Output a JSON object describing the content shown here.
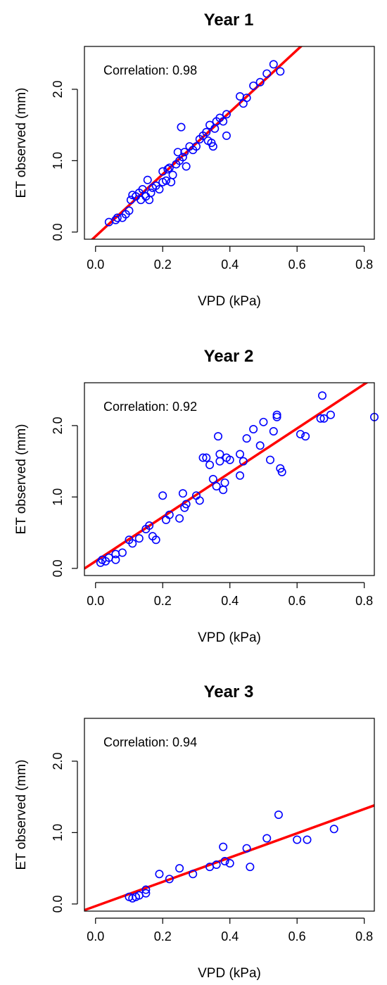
{
  "chart_data": [
    {
      "type": "scatter",
      "title": "Year 1",
      "xlabel": "VPD (kPa)",
      "ylabel": "ET observed (mm)",
      "annotation": "Correlation: 0.98",
      "xlim": [
        -0.033,
        0.83
      ],
      "ylim": [
        -0.1,
        2.6
      ],
      "xticks": [
        "0.0",
        "0.2",
        "0.4",
        "0.6",
        "0.8"
      ],
      "yticks": [
        "0.0",
        "1.0",
        "2.0"
      ],
      "point_color": "#0000ff",
      "line_color": "#ff0000",
      "fit_line": {
        "intercept": -0.06,
        "slope": 4.35
      },
      "points": [
        [
          0.04,
          0.14
        ],
        [
          0.06,
          0.17
        ],
        [
          0.065,
          0.2
        ],
        [
          0.08,
          0.2
        ],
        [
          0.09,
          0.25
        ],
        [
          0.1,
          0.3
        ],
        [
          0.105,
          0.45
        ],
        [
          0.11,
          0.52
        ],
        [
          0.12,
          0.5
        ],
        [
          0.13,
          0.55
        ],
        [
          0.135,
          0.45
        ],
        [
          0.14,
          0.6
        ],
        [
          0.15,
          0.5
        ],
        [
          0.155,
          0.73
        ],
        [
          0.16,
          0.45
        ],
        [
          0.165,
          0.55
        ],
        [
          0.17,
          0.62
        ],
        [
          0.18,
          0.65
        ],
        [
          0.19,
          0.6
        ],
        [
          0.2,
          0.7
        ],
        [
          0.2,
          0.85
        ],
        [
          0.21,
          0.72
        ],
        [
          0.215,
          0.88
        ],
        [
          0.22,
          0.9
        ],
        [
          0.225,
          0.7
        ],
        [
          0.23,
          0.8
        ],
        [
          0.24,
          0.95
        ],
        [
          0.245,
          1.12
        ],
        [
          0.25,
          1.0
        ],
        [
          0.255,
          1.47
        ],
        [
          0.26,
          1.05
        ],
        [
          0.265,
          1.12
        ],
        [
          0.27,
          0.92
        ],
        [
          0.28,
          1.2
        ],
        [
          0.29,
          1.15
        ],
        [
          0.3,
          1.2
        ],
        [
          0.31,
          1.3
        ],
        [
          0.32,
          1.35
        ],
        [
          0.33,
          1.4
        ],
        [
          0.335,
          1.28
        ],
        [
          0.34,
          1.5
        ],
        [
          0.345,
          1.25
        ],
        [
          0.35,
          1.2
        ],
        [
          0.355,
          1.45
        ],
        [
          0.36,
          1.55
        ],
        [
          0.37,
          1.6
        ],
        [
          0.38,
          1.55
        ],
        [
          0.39,
          1.35
        ],
        [
          0.39,
          1.65
        ],
        [
          0.43,
          1.9
        ],
        [
          0.44,
          1.8
        ],
        [
          0.45,
          1.88
        ],
        [
          0.47,
          2.05
        ],
        [
          0.49,
          2.1
        ],
        [
          0.51,
          2.22
        ],
        [
          0.53,
          2.35
        ],
        [
          0.55,
          2.25
        ]
      ]
    },
    {
      "type": "scatter",
      "title": "Year 2",
      "xlabel": "VPD (kPa)",
      "ylabel": "ET observed (mm)",
      "annotation": "Correlation: 0.92",
      "xlim": [
        -0.033,
        0.83
      ],
      "ylim": [
        -0.1,
        2.6
      ],
      "xticks": [
        "0.0",
        "0.2",
        "0.4",
        "0.6",
        "0.8"
      ],
      "yticks": [
        "0.0",
        "1.0",
        "2.0"
      ],
      "point_color": "#0000ff",
      "line_color": "#ff0000",
      "fit_line": {
        "intercept": 0.1,
        "slope": 3.1
      },
      "points": [
        [
          0.015,
          0.08
        ],
        [
          0.02,
          0.12
        ],
        [
          0.03,
          0.1
        ],
        [
          0.04,
          0.15
        ],
        [
          0.06,
          0.2
        ],
        [
          0.06,
          0.12
        ],
        [
          0.08,
          0.22
        ],
        [
          0.1,
          0.4
        ],
        [
          0.11,
          0.35
        ],
        [
          0.13,
          0.42
        ],
        [
          0.15,
          0.55
        ],
        [
          0.16,
          0.6
        ],
        [
          0.17,
          0.45
        ],
        [
          0.18,
          0.4
        ],
        [
          0.2,
          1.02
        ],
        [
          0.21,
          0.68
        ],
        [
          0.22,
          0.75
        ],
        [
          0.25,
          0.7
        ],
        [
          0.26,
          1.05
        ],
        [
          0.265,
          0.85
        ],
        [
          0.27,
          0.9
        ],
        [
          0.3,
          1.02
        ],
        [
          0.31,
          0.95
        ],
        [
          0.32,
          1.55
        ],
        [
          0.33,
          1.55
        ],
        [
          0.34,
          1.45
        ],
        [
          0.35,
          1.25
        ],
        [
          0.36,
          1.15
        ],
        [
          0.365,
          1.85
        ],
        [
          0.37,
          1.5
        ],
        [
          0.37,
          1.6
        ],
        [
          0.38,
          1.1
        ],
        [
          0.385,
          1.2
        ],
        [
          0.39,
          1.55
        ],
        [
          0.4,
          1.52
        ],
        [
          0.43,
          1.3
        ],
        [
          0.43,
          1.6
        ],
        [
          0.44,
          1.5
        ],
        [
          0.45,
          1.82
        ],
        [
          0.47,
          1.95
        ],
        [
          0.49,
          1.72
        ],
        [
          0.5,
          2.05
        ],
        [
          0.52,
          1.52
        ],
        [
          0.53,
          1.92
        ],
        [
          0.54,
          2.12
        ],
        [
          0.54,
          2.15
        ],
        [
          0.55,
          1.4
        ],
        [
          0.555,
          1.35
        ],
        [
          0.61,
          1.88
        ],
        [
          0.625,
          1.85
        ],
        [
          0.67,
          2.1
        ],
        [
          0.675,
          2.42
        ],
        [
          0.68,
          2.1
        ],
        [
          0.7,
          2.15
        ],
        [
          0.83,
          2.12
        ]
      ]
    },
    {
      "type": "scatter",
      "title": "Year 3",
      "xlabel": "VPD (kPa)",
      "ylabel": "ET observed (mm)",
      "annotation": "Correlation: 0.94",
      "xlim": [
        -0.033,
        0.83
      ],
      "ylim": [
        -0.1,
        2.6
      ],
      "xticks": [
        "0.0",
        "0.2",
        "0.4",
        "0.6",
        "0.8"
      ],
      "yticks": [
        "0.0",
        "1.0",
        "2.0"
      ],
      "point_color": "#0000ff",
      "line_color": "#ff0000",
      "fit_line": {
        "intercept": -0.03,
        "slope": 1.7
      },
      "points": [
        [
          0.1,
          0.1
        ],
        [
          0.11,
          0.08
        ],
        [
          0.12,
          0.1
        ],
        [
          0.13,
          0.12
        ],
        [
          0.15,
          0.15
        ],
        [
          0.15,
          0.2
        ],
        [
          0.19,
          0.42
        ],
        [
          0.22,
          0.35
        ],
        [
          0.25,
          0.5
        ],
        [
          0.29,
          0.42
        ],
        [
          0.34,
          0.52
        ],
        [
          0.36,
          0.55
        ],
        [
          0.38,
          0.8
        ],
        [
          0.385,
          0.6
        ],
        [
          0.4,
          0.57
        ],
        [
          0.45,
          0.78
        ],
        [
          0.46,
          0.52
        ],
        [
          0.51,
          0.92
        ],
        [
          0.545,
          1.25
        ],
        [
          0.6,
          0.9
        ],
        [
          0.63,
          0.9
        ],
        [
          0.71,
          1.05
        ]
      ]
    }
  ]
}
